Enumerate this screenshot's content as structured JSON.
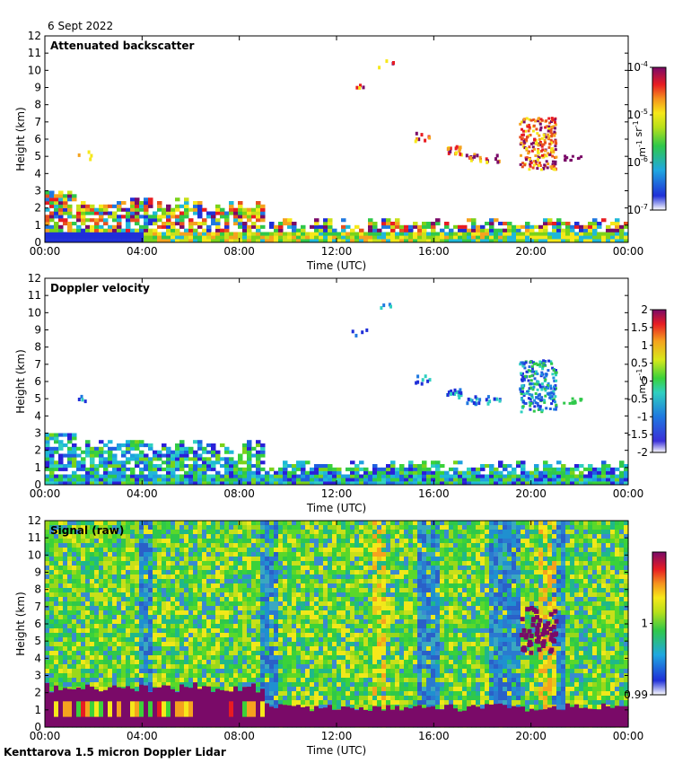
{
  "date_label": "6 Sept 2022",
  "instrument_label": "Kenttarova 1.5 micron Doppler Lidar",
  "chart_data": [
    {
      "type": "heatmap",
      "title": "Attenuated backscatter",
      "xlabel": "Time (UTC)",
      "ylabel": "Height (km)",
      "xlim": [
        0,
        24
      ],
      "ylim": [
        0,
        12
      ],
      "x_ticks": [
        "00:00",
        "04:00",
        "08:00",
        "12:00",
        "16:00",
        "20:00",
        "00:00"
      ],
      "y_ticks": [
        "0",
        "1",
        "2",
        "3",
        "4",
        "5",
        "6",
        "7",
        "8",
        "9",
        "10",
        "11",
        "12"
      ],
      "colorbar": {
        "scale": "log",
        "range": [
          1e-07,
          0.0001
        ],
        "tick_values": [
          1e-07,
          1e-06,
          1e-05,
          0.0001
        ],
        "ticks": [
          {
            "base": "10",
            "exp": "-7"
          },
          {
            "base": "10",
            "exp": "-6"
          },
          {
            "base": "10",
            "exp": "-5"
          },
          {
            "base": "10",
            "exp": "-4"
          }
        ],
        "unit_parts": [
          {
            "base": "m",
            "exp": "-1"
          },
          {
            "base": " sr",
            "exp": "-1"
          }
        ],
        "colormap": "rainbow"
      }
    },
    {
      "type": "heatmap",
      "title": "Doppler velocity",
      "xlabel": "Time (UTC)",
      "ylabel": "Height (km)",
      "xlim": [
        0,
        24
      ],
      "ylim": [
        0,
        12
      ],
      "x_ticks": [
        "00:00",
        "04:00",
        "08:00",
        "12:00",
        "16:00",
        "20:00",
        "00:00"
      ],
      "y_ticks": [
        "0",
        "1",
        "2",
        "3",
        "4",
        "5",
        "6",
        "7",
        "8",
        "9",
        "10",
        "11",
        "12"
      ],
      "colorbar": {
        "scale": "linear",
        "range": [
          -2,
          2
        ],
        "ticks": [
          "-2",
          "-1.5",
          "-1",
          "-0.5",
          "0",
          "0.5",
          "1",
          "1.5",
          "2"
        ],
        "unit_parts": [
          {
            "base": "m s",
            "exp": "-1"
          }
        ],
        "colormap": "rainbow"
      }
    },
    {
      "type": "heatmap",
      "title": "Signal (raw)",
      "xlabel": "Time (UTC)",
      "ylabel": "Height (km)",
      "xlim": [
        0,
        24
      ],
      "ylim": [
        0,
        12
      ],
      "x_ticks": [
        "00:00",
        "04:00",
        "08:00",
        "12:00",
        "16:00",
        "20:00",
        "00:00"
      ],
      "y_ticks": [
        "0",
        "1",
        "2",
        "3",
        "4",
        "5",
        "6",
        "7",
        "8",
        "9",
        "10",
        "11",
        "12"
      ],
      "colorbar": {
        "scale": "linear",
        "range": [
          0.99,
          1.01
        ],
        "ticks": [
          "0.99",
          "1"
        ],
        "tick_values": [
          0.99,
          1.0
        ],
        "unit_parts": [],
        "colormap": "rainbow"
      }
    }
  ]
}
